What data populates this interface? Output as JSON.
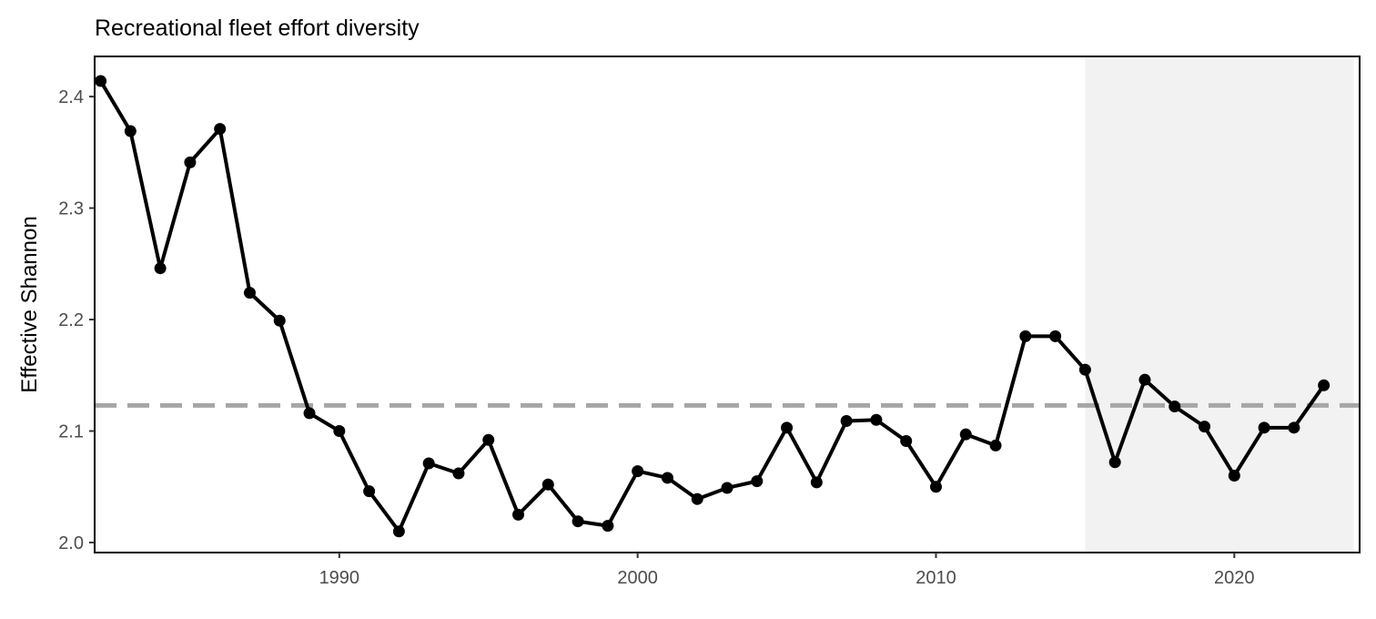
{
  "chart_data": {
    "type": "line",
    "title": "Recreational fleet effort diversity",
    "xlabel": "",
    "ylabel": "Effective Shannon",
    "xlim": [
      1981.8,
      2024.2
    ],
    "ylim": [
      1.991,
      2.436
    ],
    "x_ticks": [
      1990,
      2000,
      2010,
      2020
    ],
    "y_ticks": [
      2.0,
      2.1,
      2.2,
      2.3,
      2.4
    ],
    "y_tick_labels": [
      "2.0",
      "2.1",
      "2.2",
      "2.3",
      "2.4"
    ],
    "reference_line": {
      "y": 2.123,
      "style": "dashed",
      "color": "#a6a6a6"
    },
    "shaded_region": {
      "x_start": 2015,
      "x_end": 2024,
      "color": "#f2f2f2"
    },
    "grid": false,
    "series": [
      {
        "color": "#000000",
        "x": [
          1982,
          1983,
          1984,
          1985,
          1986,
          1987,
          1988,
          1989,
          1990,
          1991,
          1992,
          1993,
          1994,
          1995,
          1996,
          1997,
          1998,
          1999,
          2000,
          2001,
          2002,
          2003,
          2004,
          2005,
          2006,
          2007,
          2008,
          2009,
          2010,
          2011,
          2012,
          2013,
          2014,
          2015,
          2016,
          2017,
          2018,
          2019,
          2020,
          2021,
          2022,
          2023
        ],
        "values": [
          2.414,
          2.369,
          2.246,
          2.341,
          2.371,
          2.224,
          2.199,
          2.116,
          2.1,
          2.046,
          2.01,
          2.071,
          2.062,
          2.092,
          2.025,
          2.052,
          2.019,
          2.015,
          2.064,
          2.058,
          2.039,
          2.049,
          2.055,
          2.103,
          2.054,
          2.109,
          2.11,
          2.091,
          2.05,
          2.097,
          2.087,
          2.185,
          2.185,
          2.155,
          2.072,
          2.146,
          2.122,
          2.104,
          2.06,
          2.103,
          2.103,
          2.141
        ]
      }
    ]
  }
}
